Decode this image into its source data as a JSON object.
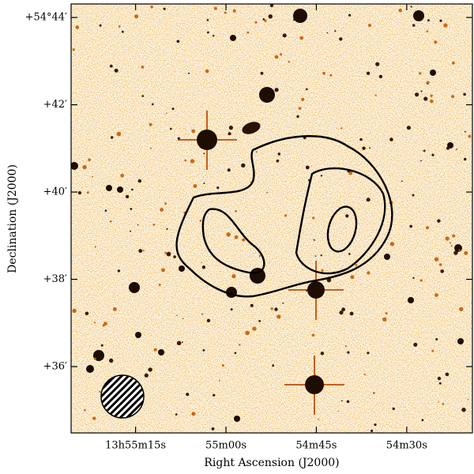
{
  "chart_data": {
    "type": "image",
    "xlabel": "Right Ascension (J2000)",
    "ylabel": "Declination (J2000)",
    "xlim": [
      50125.7,
      50059.1
    ],
    "xticks": [
      {
        "value": 50115,
        "label": "13h55m15s"
      },
      {
        "value": 50100,
        "label": "55m00s"
      },
      {
        "value": 50085,
        "label": "54m45s"
      },
      {
        "value": 50070,
        "label": "54m30s"
      }
    ],
    "ylim": [
      34.48,
      44.31
    ],
    "yticks": [
      {
        "value": 44,
        "label": "+54°44′"
      },
      {
        "value": 42,
        "label": "+42′"
      },
      {
        "value": 40,
        "label": "+40′"
      },
      {
        "value": 38,
        "label": "+38′"
      },
      {
        "value": 36,
        "label": "+36′"
      }
    ]
  }
}
